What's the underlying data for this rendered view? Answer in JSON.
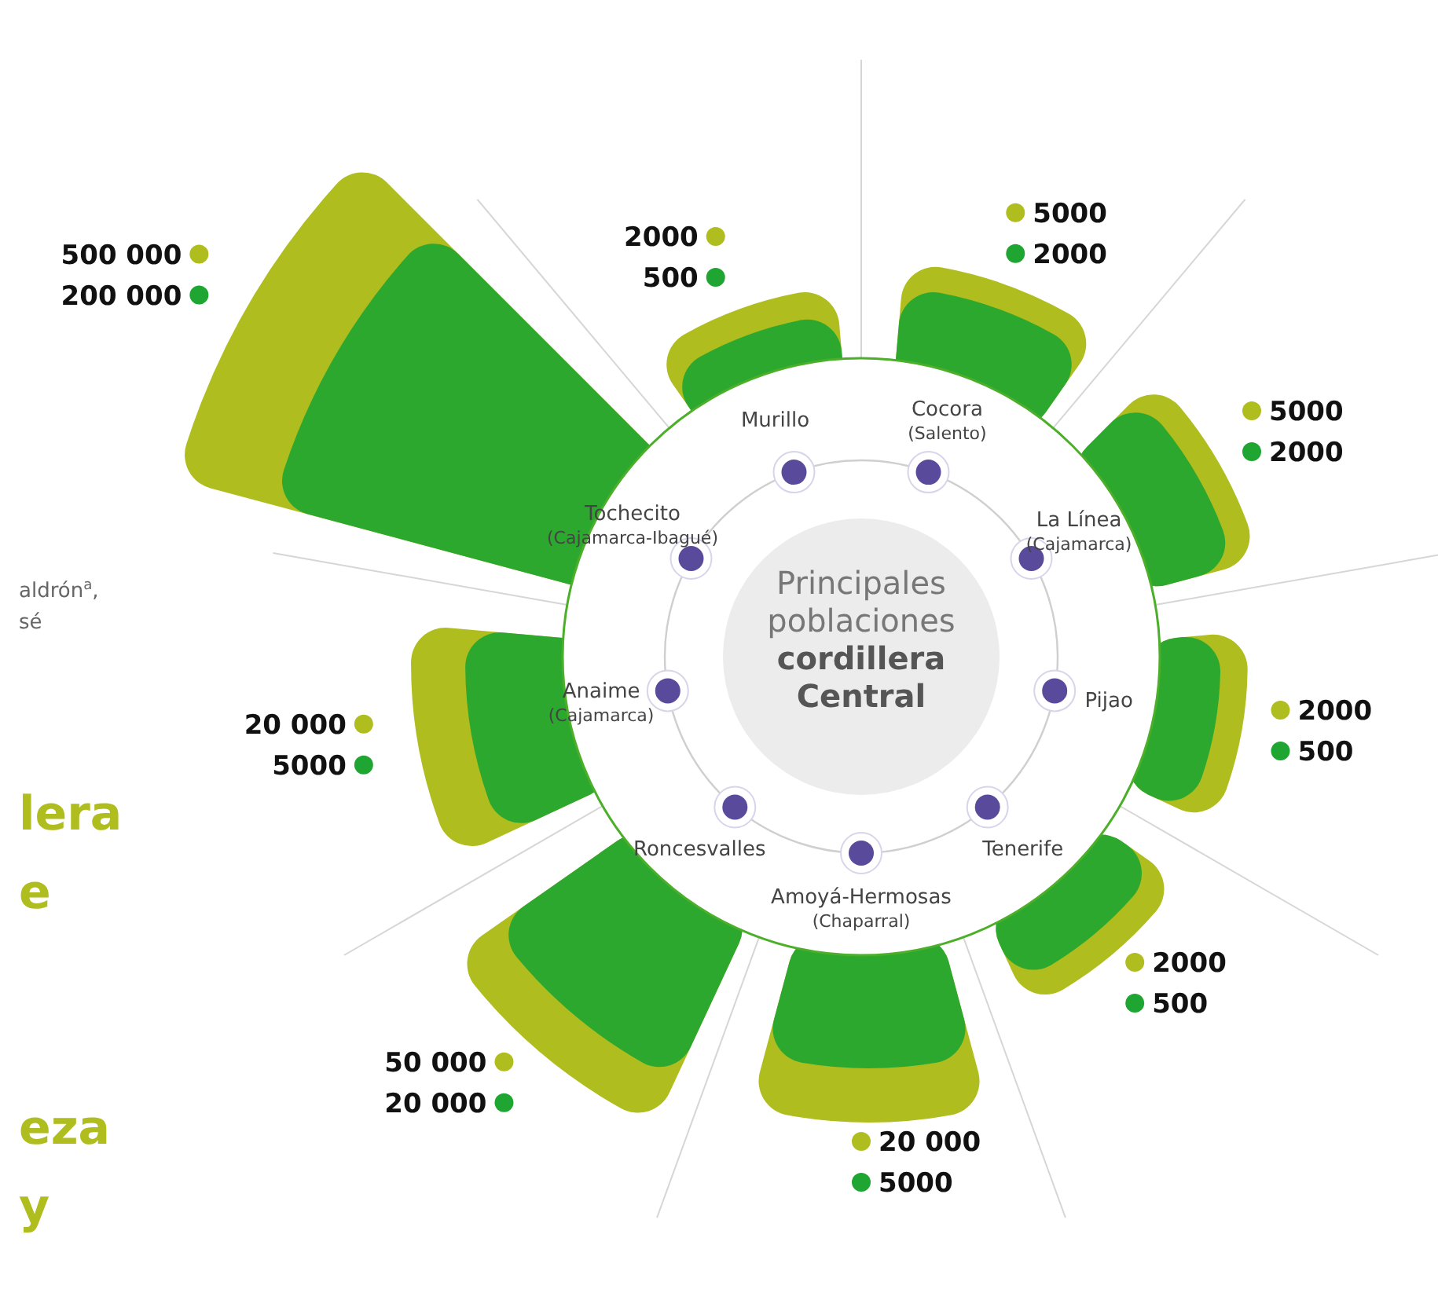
{
  "chart_data": {
    "type": "other",
    "title": "Principales poblaciones",
    "subtitle": "cordillera Central",
    "categories": [
      "Murillo",
      "Cocora (Salento)",
      "La Línea (Cajamarca)",
      "Pijao",
      "Tenerife",
      "Amoyá-Hermosas (Chaparral)",
      "Roncesvalles",
      "Anaime (Cajamarca)",
      "Tochecito (Cajamarca-Ibagué)"
    ],
    "series": [
      {
        "color": "#afbd1e",
        "values": [
          2000,
          5000,
          5000,
          2000,
          2000,
          20000,
          50000,
          20000,
          500000
        ],
        "value_labels": [
          "2000",
          "5000",
          "5000",
          "2000",
          "2000",
          "20 000",
          "50 000",
          "20 000",
          "500 000"
        ]
      },
      {
        "color": "#1fa531",
        "values": [
          500,
          2000,
          2000,
          500,
          500,
          5000,
          20000,
          5000,
          200000
        ],
        "value_labels": [
          "500",
          "2000",
          "2000",
          "500",
          "500",
          "5000",
          "20 000",
          "5000",
          "200 000"
        ]
      }
    ],
    "annotations": [
      "aldrón$^{a}$,",
      "sé",
      "lera",
      "e",
      "eza",
      "y"
    ]
  }
}
